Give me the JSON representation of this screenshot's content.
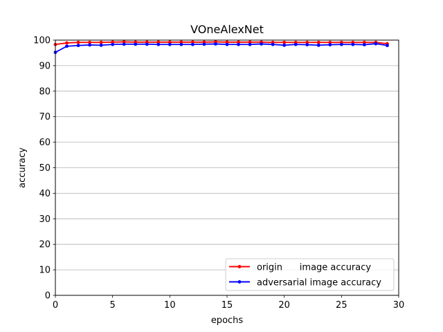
{
  "chart_data": {
    "type": "line",
    "title": "VOneAlexNet",
    "xlabel": "epochs",
    "ylabel": "accuracy",
    "xlim": [
      0,
      30
    ],
    "ylim": [
      0,
      100
    ],
    "xticks": [
      0,
      5,
      10,
      15,
      20,
      25,
      30
    ],
    "yticks": [
      0,
      10,
      20,
      30,
      40,
      50,
      60,
      70,
      80,
      90,
      100
    ],
    "grid": "horizontal",
    "legend_position": "lower-right",
    "x": [
      0,
      1,
      2,
      3,
      4,
      5,
      6,
      7,
      8,
      9,
      10,
      11,
      12,
      13,
      14,
      15,
      16,
      17,
      18,
      19,
      20,
      21,
      22,
      23,
      24,
      25,
      26,
      27,
      28,
      29
    ],
    "series": [
      {
        "name": "origin      image accuracy",
        "color": "#ff0000",
        "values": [
          98.3,
          98.9,
          99.1,
          99.1,
          99.1,
          99.2,
          99.3,
          99.2,
          99.2,
          99.2,
          99.2,
          99.2,
          99.2,
          99.2,
          99.3,
          99.2,
          99.2,
          99.2,
          99.2,
          99.1,
          99.1,
          99.1,
          99.1,
          99.1,
          99.1,
          99.1,
          99.1,
          99.1,
          99.1,
          98.6
        ]
      },
      {
        "name": "adversarial image accuracy",
        "color": "#0000ff",
        "values": [
          95.2,
          97.6,
          97.9,
          98.1,
          98.0,
          98.3,
          98.4,
          98.4,
          98.4,
          98.3,
          98.3,
          98.3,
          98.3,
          98.4,
          98.5,
          98.3,
          98.3,
          98.3,
          98.5,
          98.3,
          98.0,
          98.3,
          98.2,
          98.0,
          98.2,
          98.3,
          98.3,
          98.2,
          98.6,
          97.9
        ]
      }
    ]
  }
}
